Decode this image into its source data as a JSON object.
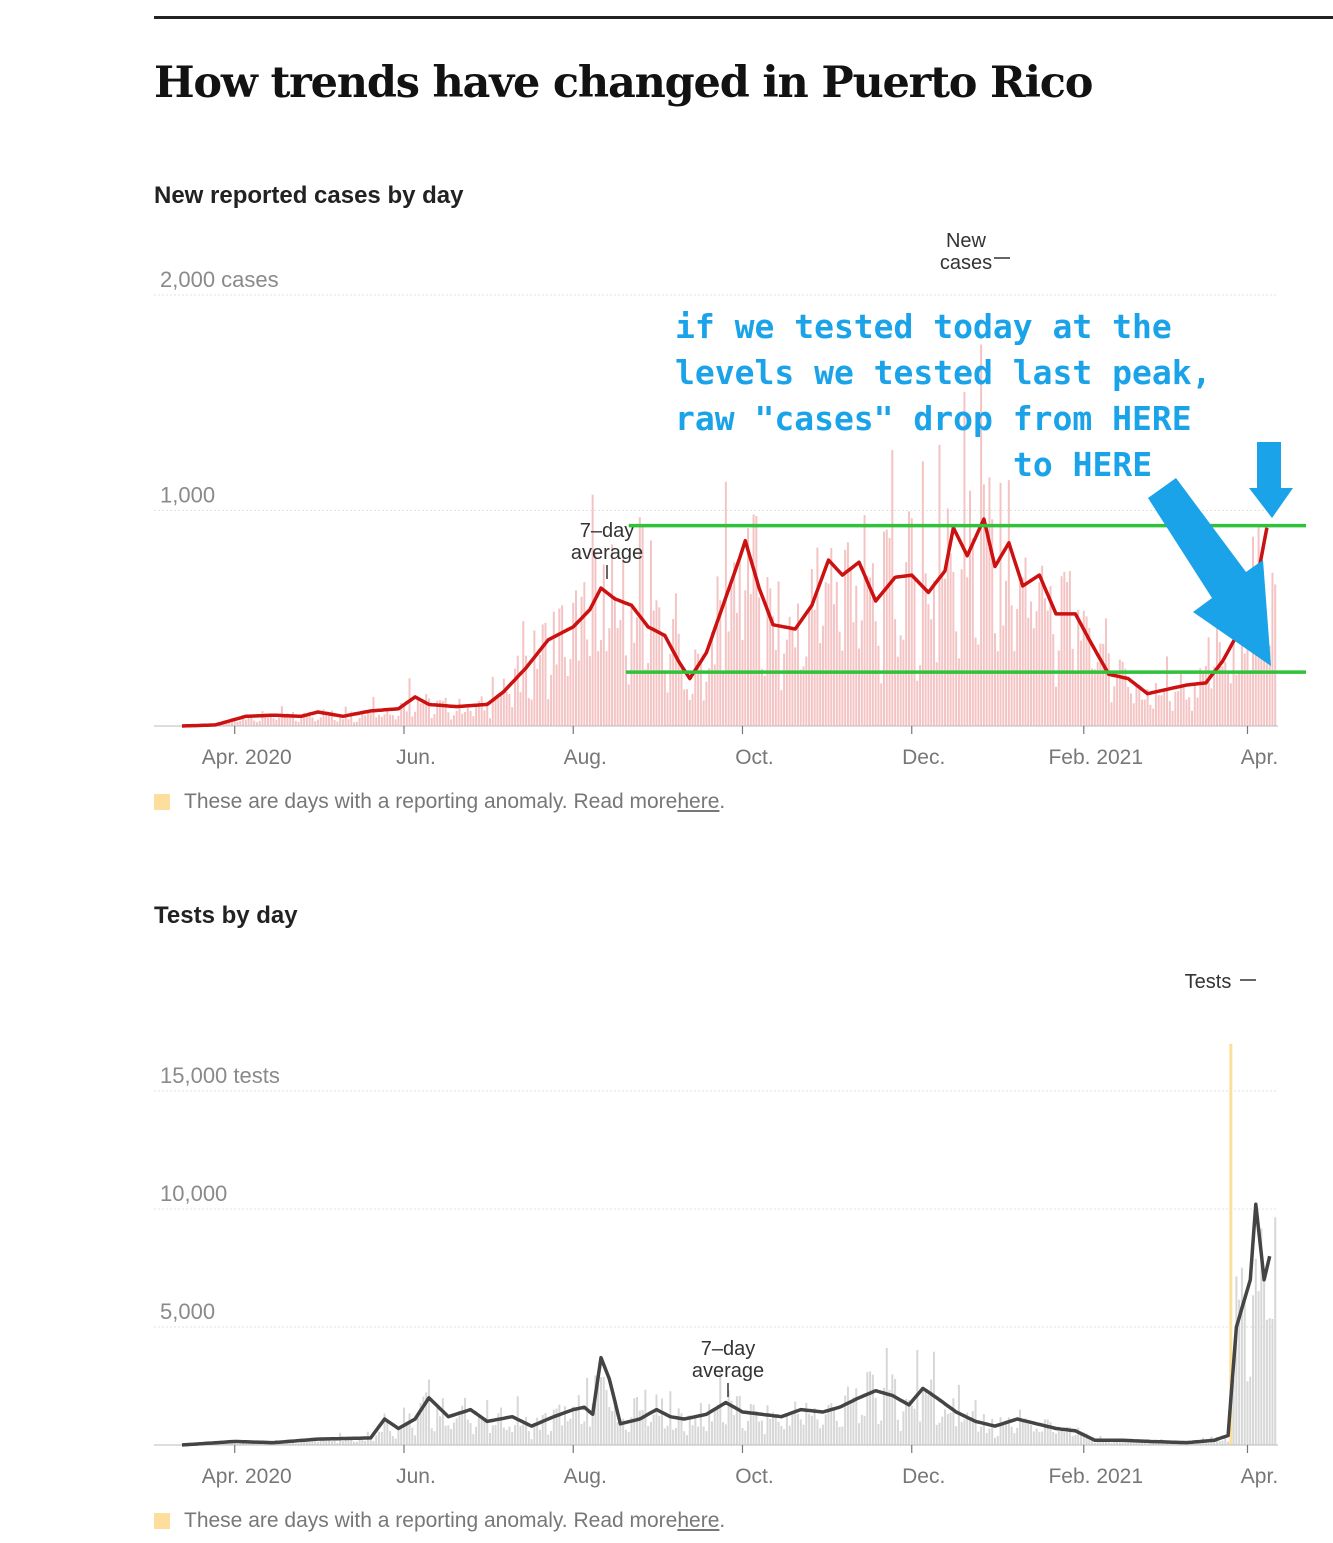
{
  "page": {
    "title": "How trends have changed in Puerto Rico"
  },
  "cases_chart": {
    "title": "New reported cases by day",
    "daily_label": "New\ncases",
    "avg_label": "7–day\naverage",
    "note_text": "These are days with a reporting anomaly. Read more ",
    "note_link": "here",
    "note_end": "."
  },
  "tests_chart": {
    "title": "Tests by day",
    "daily_label": "Tests",
    "avg_label": "7–day\naverage",
    "note_text": "These are days with a reporting anomaly. Read more ",
    "note_link": "here",
    "note_end": "."
  },
  "annotation": {
    "text_lines": [
      "if we tested today at the",
      "levels we tested last peak,",
      "raw \"cases\" drop from HERE",
      "to HERE"
    ],
    "color": "#1aa3e8",
    "reference_line_color": "#2fc23a"
  },
  "colors": {
    "cases_bar": "#f4c4c4",
    "cases_avg": "#cc1111",
    "tests_bar": "#d7d7d7",
    "tests_avg": "#444444",
    "anomaly": "#fdde9c",
    "grid": "#e2e2e2"
  },
  "chart_data": [
    {
      "type": "line",
      "title": "New reported cases by day",
      "ylabel": "cases",
      "ylim": [
        0,
        2000
      ],
      "yticks": [
        {
          "value": 1000,
          "label": "1,000"
        },
        {
          "value": 2000,
          "label": "2,000 cases"
        }
      ],
      "xlim": [
        "2020-03-13",
        "2021-04-12"
      ],
      "xticks": [
        {
          "date": "2020-04-01",
          "label": "Apr. 2020"
        },
        {
          "date": "2020-06-01",
          "label": "Jun."
        },
        {
          "date": "2020-08-01",
          "label": "Aug."
        },
        {
          "date": "2020-10-01",
          "label": "Oct."
        },
        {
          "date": "2020-12-01",
          "label": "Dec."
        },
        {
          "date": "2021-02-01",
          "label": "Feb. 2021"
        },
        {
          "date": "2021-04-01",
          "label": "Apr."
        }
      ],
      "grid": true,
      "series": [
        {
          "name": "7–day average",
          "points": [
            [
              "2020-03-13",
              0
            ],
            [
              "2020-03-25",
              5
            ],
            [
              "2020-04-05",
              45
            ],
            [
              "2020-04-15",
              50
            ],
            [
              "2020-04-25",
              45
            ],
            [
              "2020-05-01",
              65
            ],
            [
              "2020-05-10",
              45
            ],
            [
              "2020-05-20",
              70
            ],
            [
              "2020-05-30",
              80
            ],
            [
              "2020-06-05",
              135
            ],
            [
              "2020-06-10",
              100
            ],
            [
              "2020-06-20",
              90
            ],
            [
              "2020-07-01",
              100
            ],
            [
              "2020-07-07",
              160
            ],
            [
              "2020-07-15",
              270
            ],
            [
              "2020-07-23",
              400
            ],
            [
              "2020-08-01",
              460
            ],
            [
              "2020-08-07",
              540
            ],
            [
              "2020-08-11",
              640
            ],
            [
              "2020-08-16",
              590
            ],
            [
              "2020-08-22",
              560
            ],
            [
              "2020-08-28",
              460
            ],
            [
              "2020-09-03",
              420
            ],
            [
              "2020-09-08",
              300
            ],
            [
              "2020-09-12",
              220
            ],
            [
              "2020-09-18",
              340
            ],
            [
              "2020-09-24",
              560
            ],
            [
              "2020-09-30",
              780
            ],
            [
              "2020-10-02",
              860
            ],
            [
              "2020-10-07",
              640
            ],
            [
              "2020-10-12",
              470
            ],
            [
              "2020-10-20",
              450
            ],
            [
              "2020-10-26",
              560
            ],
            [
              "2020-11-01",
              770
            ],
            [
              "2020-11-06",
              700
            ],
            [
              "2020-11-12",
              760
            ],
            [
              "2020-11-18",
              580
            ],
            [
              "2020-11-25",
              690
            ],
            [
              "2020-12-01",
              700
            ],
            [
              "2020-12-07",
              620
            ],
            [
              "2020-12-13",
              720
            ],
            [
              "2020-12-16",
              920
            ],
            [
              "2020-12-21",
              790
            ],
            [
              "2020-12-27",
              960
            ],
            [
              "2020-12-31",
              740
            ],
            [
              "2021-01-05",
              850
            ],
            [
              "2021-01-10",
              650
            ],
            [
              "2021-01-16",
              700
            ],
            [
              "2021-01-22",
              520
            ],
            [
              "2021-01-29",
              520
            ],
            [
              "2021-02-03",
              400
            ],
            [
              "2021-02-10",
              240
            ],
            [
              "2021-02-17",
              220
            ],
            [
              "2021-02-24",
              150
            ],
            [
              "2021-03-03",
              170
            ],
            [
              "2021-03-10",
              190
            ],
            [
              "2021-03-17",
              200
            ],
            [
              "2021-03-23",
              300
            ],
            [
              "2021-03-29",
              440
            ],
            [
              "2021-04-04",
              650
            ],
            [
              "2021-04-08",
              920
            ]
          ]
        }
      ],
      "annotations": [
        {
          "text": "if we tested today at the levels we tested last peak, raw \"cases\" drop from HERE to HERE"
        },
        {
          "type": "reference_line",
          "value": 930,
          "x_from": "2020-08-21",
          "x_to": "2021-04-12"
        },
        {
          "type": "reference_line",
          "value": 250,
          "x_from": "2020-08-20",
          "x_to": "2021-04-12"
        }
      ]
    },
    {
      "type": "line",
      "title": "Tests by day",
      "ylabel": "tests",
      "ylim": [
        0,
        20000
      ],
      "yticks": [
        {
          "value": 5000,
          "label": "5,000"
        },
        {
          "value": 10000,
          "label": "10,000"
        },
        {
          "value": 15000,
          "label": "15,000 tests"
        }
      ],
      "xlim": [
        "2020-03-13",
        "2021-04-12"
      ],
      "xticks": [
        {
          "date": "2020-04-01",
          "label": "Apr. 2020"
        },
        {
          "date": "2020-06-01",
          "label": "Jun."
        },
        {
          "date": "2020-08-01",
          "label": "Aug."
        },
        {
          "date": "2020-10-01",
          "label": "Oct."
        },
        {
          "date": "2020-12-01",
          "label": "Dec."
        },
        {
          "date": "2021-02-01",
          "label": "Feb. 2021"
        },
        {
          "date": "2021-04-01",
          "label": "Apr."
        }
      ],
      "grid": true,
      "series": [
        {
          "name": "7–day average",
          "points": [
            [
              "2020-03-13",
              0
            ],
            [
              "2020-04-01",
              150
            ],
            [
              "2020-04-15",
              100
            ],
            [
              "2020-05-01",
              250
            ],
            [
              "2020-05-20",
              300
            ],
            [
              "2020-05-25",
              1100
            ],
            [
              "2020-05-30",
              700
            ],
            [
              "2020-06-05",
              1100
            ],
            [
              "2020-06-10",
              2000
            ],
            [
              "2020-06-17",
              1200
            ],
            [
              "2020-06-25",
              1500
            ],
            [
              "2020-07-01",
              1000
            ],
            [
              "2020-07-10",
              1200
            ],
            [
              "2020-07-17",
              800
            ],
            [
              "2020-07-25",
              1200
            ],
            [
              "2020-08-01",
              1500
            ],
            [
              "2020-08-05",
              1600
            ],
            [
              "2020-08-08",
              1300
            ],
            [
              "2020-08-11",
              3700
            ],
            [
              "2020-08-14",
              2800
            ],
            [
              "2020-08-18",
              900
            ],
            [
              "2020-08-25",
              1100
            ],
            [
              "2020-08-31",
              1500
            ],
            [
              "2020-09-05",
              1200
            ],
            [
              "2020-09-10",
              1100
            ],
            [
              "2020-09-18",
              1300
            ],
            [
              "2020-09-25",
              1800
            ],
            [
              "2020-10-01",
              1400
            ],
            [
              "2020-10-08",
              1300
            ],
            [
              "2020-10-15",
              1200
            ],
            [
              "2020-10-22",
              1500
            ],
            [
              "2020-10-30",
              1400
            ],
            [
              "2020-11-05",
              1600
            ],
            [
              "2020-11-12",
              2000
            ],
            [
              "2020-11-18",
              2300
            ],
            [
              "2020-11-24",
              2100
            ],
            [
              "2020-11-30",
              1700
            ],
            [
              "2020-12-05",
              2400
            ],
            [
              "2020-12-10",
              2000
            ],
            [
              "2020-12-17",
              1400
            ],
            [
              "2020-12-24",
              1000
            ],
            [
              "2020-12-31",
              800
            ],
            [
              "2021-01-08",
              1100
            ],
            [
              "2021-01-15",
              900
            ],
            [
              "2021-01-22",
              700
            ],
            [
              "2021-01-29",
              600
            ],
            [
              "2021-02-05",
              200
            ],
            [
              "2021-02-15",
              200
            ],
            [
              "2021-02-25",
              150
            ],
            [
              "2021-03-10",
              100
            ],
            [
              "2021-03-20",
              200
            ],
            [
              "2021-03-25",
              400
            ],
            [
              "2021-03-28",
              5000
            ],
            [
              "2021-04-02",
              7000
            ],
            [
              "2021-04-04",
              10200
            ],
            [
              "2021-04-07",
              7000
            ],
            [
              "2021-04-09",
              8000
            ]
          ]
        }
      ],
      "anomalies": [
        {
          "date": "2021-03-26",
          "value": 17000
        }
      ]
    }
  ]
}
